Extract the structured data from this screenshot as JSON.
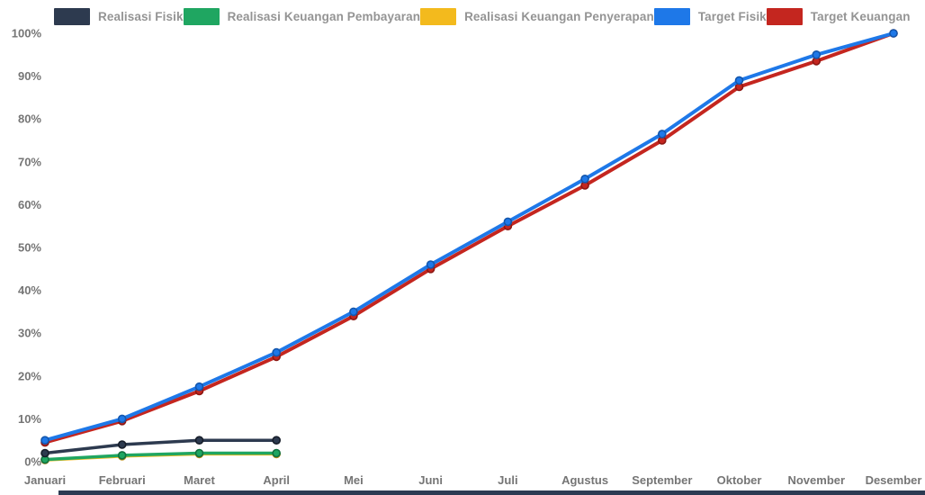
{
  "chart_data": {
    "type": "line",
    "categories": [
      "Januari",
      "Februari",
      "Maret",
      "April",
      "Mei",
      "Juni",
      "Juli",
      "Agustus",
      "September",
      "Oktober",
      "November",
      "Desember"
    ],
    "series": [
      {
        "name": "Realisasi Fisik",
        "color": "#2d3a4f",
        "marker_color": "#161d29",
        "width": 3.5,
        "values": [
          2,
          4,
          5,
          5,
          null,
          null,
          null,
          null,
          null,
          null,
          null,
          null
        ]
      },
      {
        "name": "Realisasi Keuangan Pembayaran",
        "color": "#1fa661",
        "marker_color": "#12703f",
        "width": 3.5,
        "values": [
          0.5,
          1.5,
          2,
          2,
          null,
          null,
          null,
          null,
          null,
          null,
          null,
          null
        ]
      },
      {
        "name": "Realisasi Keuangan Penyerapan",
        "color": "#f3ba1d",
        "marker_color": "#bd8c0f",
        "width": 3.5,
        "values": [
          0.4,
          1.3,
          1.8,
          1.8,
          null,
          null,
          null,
          null,
          null,
          null,
          null,
          null
        ]
      },
      {
        "name": "Target Fisik",
        "color": "#1e78e8",
        "marker_color": "#1356ad",
        "width": 4,
        "values": [
          5,
          10,
          17.5,
          25.5,
          35,
          46,
          56,
          66,
          76.5,
          89,
          95,
          100
        ]
      },
      {
        "name": "Target Keuangan",
        "color": "#c4261f",
        "marker_color": "#8c1712",
        "width": 4,
        "values": [
          4.5,
          9.5,
          16.5,
          24.5,
          34,
          45,
          55,
          64.5,
          75,
          87.5,
          93.5,
          100
        ]
      }
    ],
    "draw_order": [
      2,
      1,
      0,
      4,
      3
    ],
    "title": "",
    "xlabel": "",
    "ylabel": "",
    "ylim": [
      0,
      100
    ],
    "y_ticks": [
      "0%",
      "10%",
      "20%",
      "30%",
      "40%",
      "50%",
      "60%",
      "70%",
      "80%",
      "90%",
      "100%"
    ],
    "grid": false,
    "legend_position": "top"
  },
  "bottom_bar": {
    "color": "#2c3a52"
  }
}
